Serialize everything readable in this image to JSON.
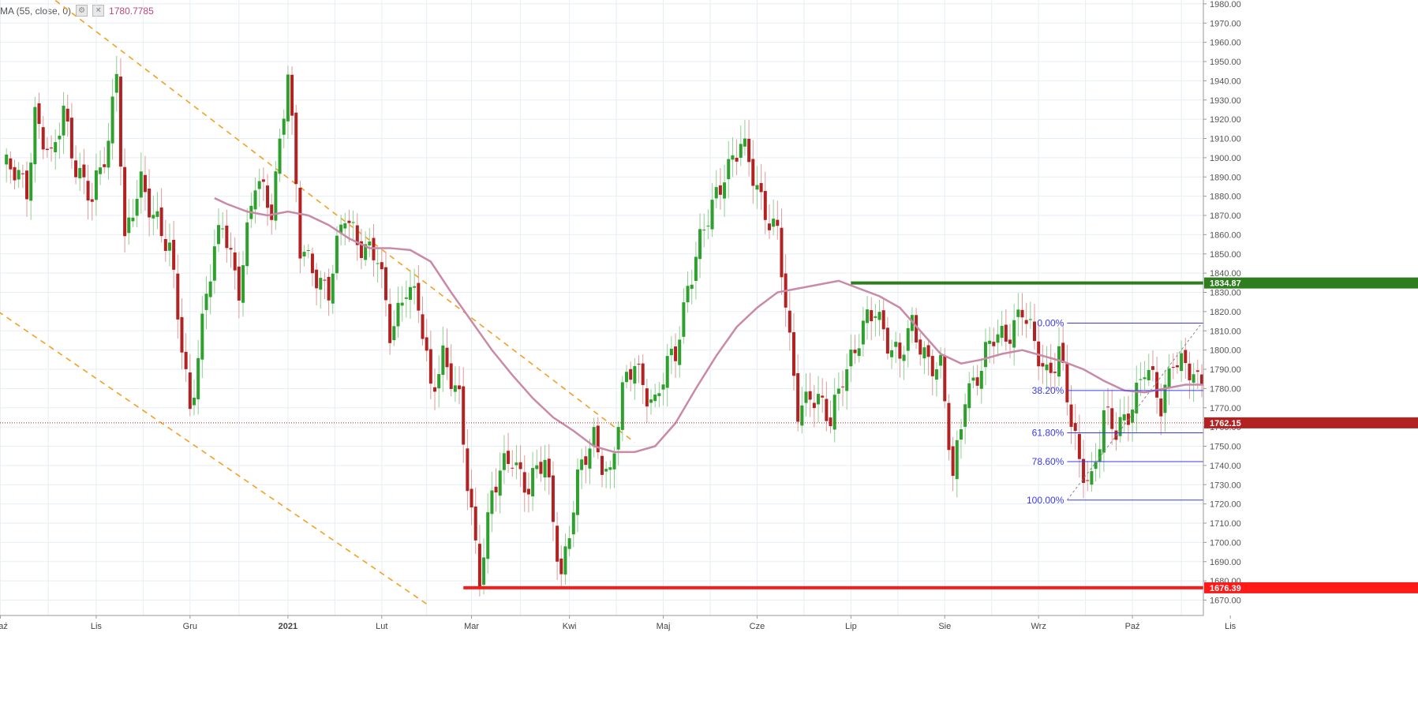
{
  "indicator": {
    "label": "MA (55, close, 0)",
    "value": "1780.7785",
    "settings_icon": "gear-icon",
    "close_icon": "close-icon"
  },
  "chart_data": {
    "type": "candlestick",
    "y_axis": {
      "ticks": [
        1670,
        1680,
        1690,
        1700,
        1710,
        1720,
        1730,
        1740,
        1750,
        1760,
        1770,
        1780,
        1790,
        1800,
        1810,
        1820,
        1830,
        1840,
        1850,
        1860,
        1870,
        1880,
        1890,
        1900,
        1910,
        1920,
        1930,
        1940,
        1950,
        1960,
        1970,
        1980
      ],
      "range": [
        1662,
        1982
      ],
      "tick_format": "0.00"
    },
    "x_axis": {
      "labels": [
        "Paź",
        "Lis",
        "Gru",
        "2021",
        "Lut",
        "Mar",
        "Kwi",
        "Maj",
        "Cze",
        "Lip",
        "Sie",
        "Wrz",
        "Paź",
        "Lis"
      ],
      "bold": [
        "2021"
      ],
      "label_index": [
        -0.5,
        23,
        46,
        70,
        93,
        115,
        139,
        162,
        185,
        208,
        231,
        254,
        277,
        301
      ]
    },
    "bar_count": 304,
    "close_anchors": [
      [
        0,
        1895
      ],
      [
        6,
        1885
      ],
      [
        8,
        1925
      ],
      [
        12,
        1895
      ],
      [
        15,
        1925
      ],
      [
        18,
        1898
      ],
      [
        22,
        1875
      ],
      [
        26,
        1910
      ],
      [
        28,
        1950
      ],
      [
        30,
        1855
      ],
      [
        34,
        1885
      ],
      [
        38,
        1870
      ],
      [
        41,
        1850
      ],
      [
        44,
        1800
      ],
      [
        46,
        1770
      ],
      [
        50,
        1830
      ],
      [
        54,
        1865
      ],
      [
        58,
        1835
      ],
      [
        62,
        1885
      ],
      [
        66,
        1875
      ],
      [
        70,
        1945
      ],
      [
        73,
        1850
      ],
      [
        76,
        1845
      ],
      [
        80,
        1830
      ],
      [
        84,
        1870
      ],
      [
        87,
        1860
      ],
      [
        92,
        1845
      ],
      [
        95,
        1810
      ],
      [
        99,
        1835
      ],
      [
        102,
        1820
      ],
      [
        105,
        1780
      ],
      [
        108,
        1800
      ],
      [
        112,
        1770
      ],
      [
        114,
        1730
      ],
      [
        117,
        1685
      ],
      [
        120,
        1725
      ],
      [
        125,
        1745
      ],
      [
        129,
        1730
      ],
      [
        133,
        1740
      ],
      [
        137,
        1685
      ],
      [
        141,
        1730
      ],
      [
        145,
        1755
      ],
      [
        149,
        1735
      ],
      [
        152,
        1775
      ],
      [
        155,
        1795
      ],
      [
        160,
        1770
      ],
      [
        163,
        1790
      ],
      [
        165,
        1800
      ],
      [
        168,
        1835
      ],
      [
        172,
        1860
      ],
      [
        177,
        1895
      ],
      [
        181,
        1905
      ],
      [
        186,
        1880
      ],
      [
        190,
        1860
      ],
      [
        193,
        1800
      ],
      [
        195,
        1770
      ],
      [
        198,
        1780
      ],
      [
        203,
        1760
      ],
      [
        206,
        1790
      ],
      [
        210,
        1805
      ],
      [
        214,
        1820
      ],
      [
        217,
        1808
      ],
      [
        220,
        1795
      ],
      [
        223,
        1810
      ],
      [
        226,
        1800
      ],
      [
        230,
        1790
      ],
      [
        233,
        1730
      ],
      [
        236,
        1780
      ],
      [
        240,
        1790
      ],
      [
        243,
        1805
      ],
      [
        246,
        1810
      ],
      [
        250,
        1820
      ],
      [
        253,
        1800
      ],
      [
        256,
        1790
      ],
      [
        259,
        1800
      ],
      [
        262,
        1760
      ],
      [
        264,
        1740
      ],
      [
        267,
        1735
      ],
      [
        270,
        1765
      ],
      [
        273,
        1755
      ],
      [
        277,
        1775
      ],
      [
        280,
        1790
      ],
      [
        284,
        1770
      ],
      [
        287,
        1800
      ],
      [
        290,
        1790
      ],
      [
        293,
        1780
      ],
      [
        296,
        1790
      ],
      [
        299,
        1762
      ]
    ],
    "moving_average": {
      "name": "MA (55, close, 0)",
      "start_index": 52,
      "points": [
        [
          52,
          1879
        ],
        [
          55,
          1876
        ],
        [
          60,
          1872
        ],
        [
          65,
          1870
        ],
        [
          70,
          1872
        ],
        [
          75,
          1870
        ],
        [
          80,
          1865
        ],
        [
          85,
          1858
        ],
        [
          90,
          1853
        ],
        [
          95,
          1853
        ],
        [
          100,
          1852
        ],
        [
          105,
          1846
        ],
        [
          110,
          1830
        ],
        [
          115,
          1815
        ],
        [
          120,
          1800
        ],
        [
          125,
          1787
        ],
        [
          130,
          1775
        ],
        [
          135,
          1765
        ],
        [
          140,
          1758
        ],
        [
          145,
          1750
        ],
        [
          150,
          1747
        ],
        [
          155,
          1747
        ],
        [
          160,
          1750
        ],
        [
          165,
          1762
        ],
        [
          170,
          1780
        ],
        [
          175,
          1797
        ],
        [
          180,
          1812
        ],
        [
          185,
          1822
        ],
        [
          190,
          1830
        ],
        [
          195,
          1832
        ],
        [
          200,
          1834
        ],
        [
          205,
          1836
        ],
        [
          210,
          1832
        ],
        [
          215,
          1828
        ],
        [
          220,
          1822
        ],
        [
          225,
          1810
        ],
        [
          230,
          1798
        ],
        [
          235,
          1793
        ],
        [
          240,
          1795
        ],
        [
          245,
          1798
        ],
        [
          250,
          1800
        ],
        [
          255,
          1797
        ],
        [
          260,
          1794
        ],
        [
          265,
          1790
        ],
        [
          270,
          1784
        ],
        [
          275,
          1779
        ],
        [
          280,
          1778
        ],
        [
          285,
          1780
        ],
        [
          290,
          1782
        ],
        [
          295,
          1782
        ],
        [
          299,
          1781
        ]
      ],
      "color": "#c98aa8"
    },
    "horizontal_levels": [
      {
        "value": 1834.87,
        "label": "1834.87",
        "color": "#2e7d1e",
        "from_index": 208
      },
      {
        "value": 1676.39,
        "label": "1676.39",
        "color": "#ff1a1a",
        "from_index": 113
      }
    ],
    "current_price": {
      "value": 1762.15,
      "label": "1762.15",
      "color": "#b22222"
    },
    "fibonacci": {
      "from_index": 261,
      "to_index": 294,
      "levels": [
        {
          "label": "0.00%",
          "value": 1814
        },
        {
          "label": "38.20%",
          "value": 1779
        },
        {
          "label": "61.80%",
          "value": 1757
        },
        {
          "label": "78.60%",
          "value": 1742
        },
        {
          "label": "100.00%",
          "value": 1722
        }
      ],
      "color": "#3a3af0"
    },
    "trend_lines": [
      {
        "from": [
          11,
          1985
        ],
        "to": [
          155,
          1752
        ],
        "color": "#f5a020"
      },
      {
        "from": [
          -1,
          1820
        ],
        "to": [
          104,
          1668
        ],
        "color": "#f5a020"
      }
    ],
    "colors": {
      "up": "#2ea02e",
      "down": "#b22222",
      "grid": "#e6eef5"
    }
  }
}
